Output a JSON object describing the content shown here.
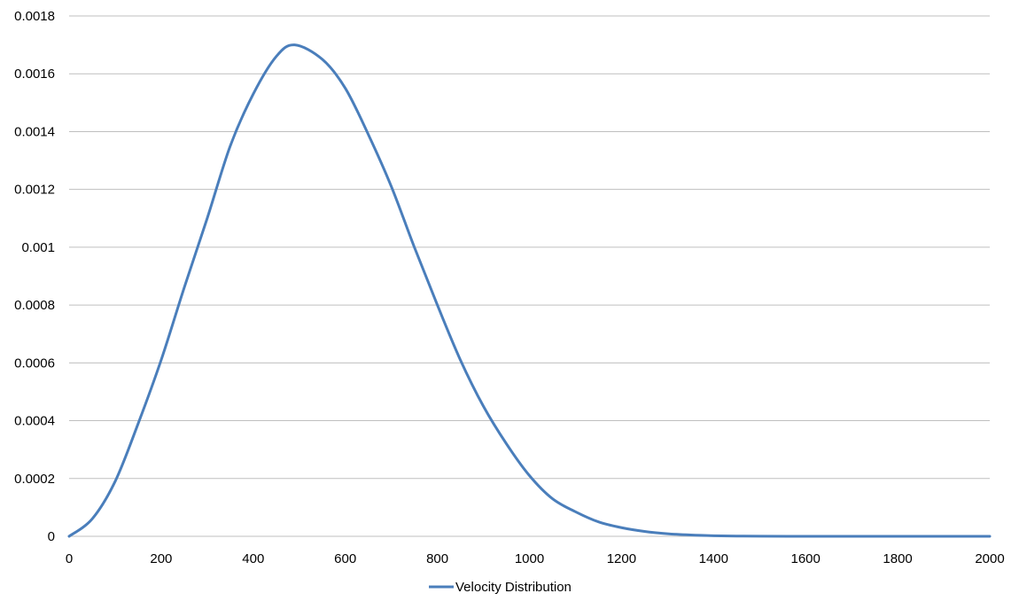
{
  "chart_data": {
    "type": "line",
    "title": "",
    "xlabel": "",
    "ylabel": "",
    "xlim": [
      0,
      2000
    ],
    "ylim": [
      0,
      0.0018
    ],
    "x_ticks": [
      "0",
      "200",
      "400",
      "600",
      "800",
      "1000",
      "1200",
      "1400",
      "1600",
      "1800",
      "2000"
    ],
    "y_ticks": [
      "0",
      "0.0002",
      "0.0004",
      "0.0006",
      "0.0008",
      "0.001",
      "0.0012",
      "0.0014",
      "0.0016",
      "0.0018"
    ],
    "grid": "horizontal",
    "legend_position": "bottom",
    "colors": {
      "series": "#4a7ebb",
      "grid": "#bfbfbf",
      "axis": "#bfbfbf"
    },
    "series": [
      {
        "name": "Velocity Distribution",
        "x": [
          0,
          50,
          100,
          150,
          200,
          250,
          300,
          350,
          400,
          450,
          490,
          550,
          600,
          650,
          700,
          750,
          800,
          850,
          900,
          950,
          1000,
          1050,
          1100,
          1150,
          1200,
          1250,
          1300,
          1350,
          1400,
          1450,
          1500,
          1600,
          1700,
          1800,
          1900,
          2000
        ],
        "y": [
          0,
          6e-05,
          0.00019,
          0.00039,
          0.00061,
          0.00086,
          0.0011,
          0.00135,
          0.00153,
          0.00166,
          0.0017,
          0.00165,
          0.00155,
          0.00139,
          0.00121,
          0.001,
          0.0008,
          0.00061,
          0.00045,
          0.00032,
          0.00021,
          0.00013,
          8.5e-05,
          5e-05,
          3e-05,
          1.7e-05,
          9e-06,
          4.5e-06,
          2e-06,
          9e-07,
          4e-07,
          5e-08,
          0,
          0,
          0,
          0
        ]
      }
    ]
  }
}
